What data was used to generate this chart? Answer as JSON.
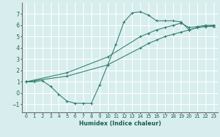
{
  "title": "",
  "xlabel": "Humidex (Indice chaleur)",
  "ylabel": "",
  "xlim": [
    -0.5,
    23.5
  ],
  "ylim": [
    -1.7,
    8.0
  ],
  "xticks": [
    0,
    1,
    2,
    3,
    4,
    5,
    6,
    7,
    8,
    9,
    10,
    11,
    12,
    13,
    14,
    15,
    16,
    17,
    18,
    19,
    20,
    21,
    22,
    23
  ],
  "yticks": [
    -1,
    0,
    1,
    2,
    3,
    4,
    5,
    6,
    7
  ],
  "bg_color": "#d8eeee",
  "grid_color": "#ffffff",
  "line_color": "#2e7d6e",
  "line1_x": [
    0,
    1,
    2,
    3,
    4,
    5,
    6,
    7,
    8,
    9,
    10,
    11,
    12,
    13,
    14,
    15,
    16,
    17,
    18,
    19,
    20,
    21,
    22,
    23
  ],
  "line1_y": [
    1.0,
    1.0,
    1.1,
    0.6,
    -0.1,
    -0.7,
    -0.9,
    -0.9,
    -0.9,
    0.7,
    2.5,
    4.3,
    6.3,
    7.1,
    7.2,
    6.9,
    6.4,
    6.4,
    6.4,
    6.3,
    5.6,
    5.8,
    5.9,
    5.9
  ],
  "line2_x": [
    0,
    5,
    10,
    14,
    15,
    16,
    17,
    18,
    19,
    20,
    21,
    22,
    23
  ],
  "line2_y": [
    1.0,
    1.8,
    3.2,
    5.0,
    5.3,
    5.6,
    5.8,
    6.0,
    6.2,
    5.8,
    5.9,
    6.0,
    6.0
  ],
  "line3_x": [
    0,
    5,
    10,
    14,
    15,
    16,
    17,
    18,
    19,
    20,
    21,
    22,
    23
  ],
  "line3_y": [
    1.0,
    1.5,
    2.5,
    4.0,
    4.4,
    4.7,
    5.0,
    5.2,
    5.4,
    5.6,
    5.8,
    5.9,
    6.0
  ]
}
